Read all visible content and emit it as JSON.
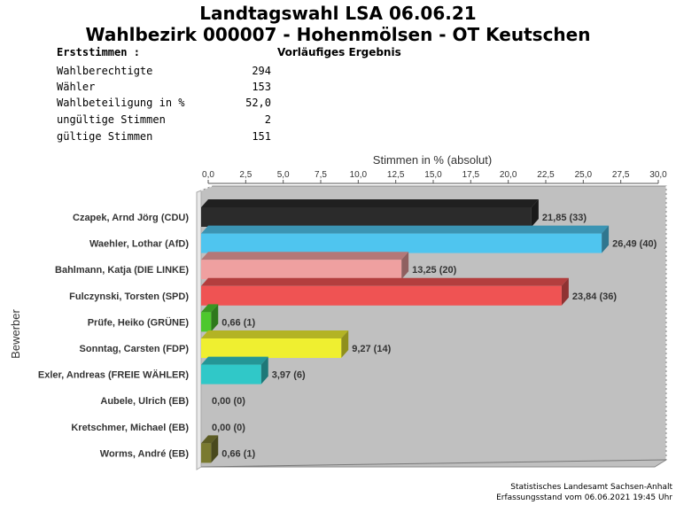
{
  "header": {
    "title_line1": "Landtagswahl LSA 06.06.21",
    "title_line2": "Wahlbezirk 000007 - Hohenmölsen - OT Keutschen",
    "section_label": "Erststimmen   :",
    "status": "Vorläufiges Ergebnis"
  },
  "stats": [
    {
      "label": "Wahlberechtigte",
      "value": "294"
    },
    {
      "label": "Wähler",
      "value": "153"
    },
    {
      "label": "Wahlbeteiligung in %",
      "value": "52,0"
    },
    {
      "label": "ungültige Stimmen",
      "value": "2"
    },
    {
      "label": "gültige Stimmen",
      "value": "151"
    }
  ],
  "chart_data": {
    "type": "bar",
    "orientation": "horizontal",
    "style": "3d",
    "xlabel": "Stimmen in % (absolut)",
    "ylabel": "Bewerber",
    "xlim": [
      0,
      30
    ],
    "xticks": [
      "0,0",
      "2,5",
      "5,0",
      "7,5",
      "10,0",
      "12,5",
      "15,0",
      "17,5",
      "20,0",
      "22,5",
      "25,0",
      "27,5",
      "30,0"
    ],
    "grid": false,
    "categories": [
      "Czapek, Arnd Jörg (CDU)",
      "Waehler, Lothar (AfD)",
      "Bahlmann, Katja (DIE LINKE)",
      "Fulczynski, Torsten (SPD)",
      "Prüfe, Heiko (GRÜNE)",
      "Sonntag, Carsten (FDP)",
      "Exler, Andreas (FREIE WÄHLER)",
      "Aubele, Ulrich (EB)",
      "Kretschmer, Michael (EB)",
      "Worms, André (EB)"
    ],
    "values": [
      21.85,
      26.49,
      13.25,
      23.84,
      0.66,
      9.27,
      3.97,
      0.0,
      0.0,
      0.66
    ],
    "value_labels": [
      "21,85 (33)",
      "26,49 (40)",
      "13,25 (20)",
      "23,84 (36)",
      "0,66 (1)",
      "9,27 (14)",
      "3,97 (6)",
      "0,00 (0)",
      "0,00 (0)",
      "0,66 (1)"
    ],
    "colors": [
      "#2b2b2b",
      "#4fc5ef",
      "#efa0a0",
      "#ef5353",
      "#4dc82e",
      "#efef30",
      "#30c8c8",
      "#888888",
      "#888888",
      "#7a7a30"
    ],
    "plot_background": "#c0c0c0"
  },
  "footer": {
    "line1": "Statistisches Landesamt Sachsen-Anhalt",
    "line2": "Erfassungsstand vom 06.06.2021 19:45 Uhr"
  }
}
